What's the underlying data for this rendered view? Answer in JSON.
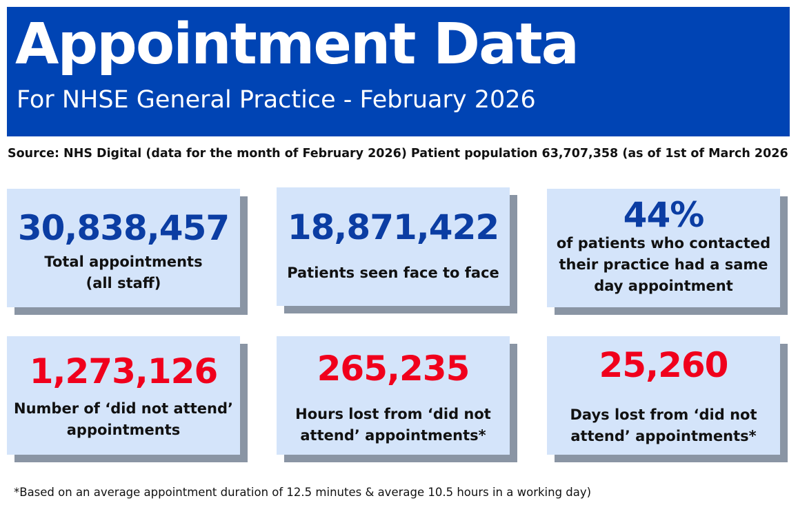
{
  "header": {
    "title": "Appointment Data",
    "subtitle": "For NHSE General Practice - February 2026"
  },
  "source": "Source: NHS Digital (data for the month of February 2026) Patient population 63,707,358 (as of 1st of  March 2026",
  "stats": [
    {
      "value": "30,838,457",
      "label_line1": "Total appointments",
      "label_line2": "(all staff)",
      "color": "#0b3da3"
    },
    {
      "value": "18,871,422",
      "label_line1": "Patients seen face to face",
      "color": "#0b3da3"
    },
    {
      "value": "44%",
      "label_line1": "of patients who contacted",
      "label_line2": "their practice had a same",
      "label_line3": "day appointment",
      "color": "#0b3da3"
    },
    {
      "value": "1,273,126",
      "label_line1": "Number of ‘did not attend’",
      "label_line2": "appointments",
      "color": "#f0001c"
    },
    {
      "value": "265,235",
      "label_line1": "Hours lost from ‘did not",
      "label_line2": "attend’ appointments*",
      "color": "#f0001c"
    },
    {
      "value": "25,260",
      "label_line1": "Days lost from ‘did not",
      "label_line2": "attend’ appointments*",
      "color": "#f0001c"
    }
  ],
  "footnote": "*Based on an average appointment duration of 12.5 minutes & average 10.5 hours in a working day)",
  "colors": {
    "header_bg": "#0044b4",
    "card_bg": "#d4e4fa",
    "card_shadow": "#8a95a4",
    "value_blue": "#0b3da3",
    "value_red": "#f0001c"
  }
}
